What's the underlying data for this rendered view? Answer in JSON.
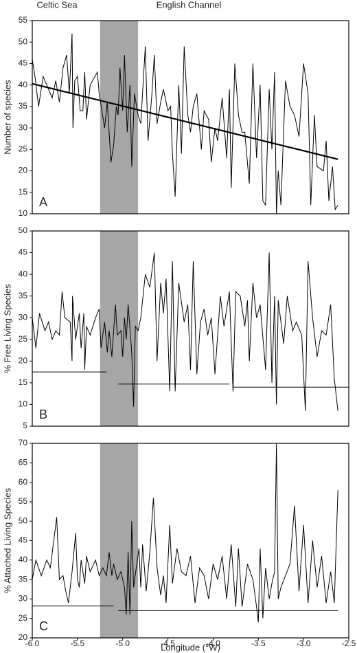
{
  "chart_data": [
    {
      "type": "line",
      "panel_label": "A",
      "ylabel": "Number of species",
      "annotations": [
        "Celtic Sea",
        "English Channel"
      ],
      "xlim": [
        -6,
        -2.5
      ],
      "ylim": [
        10,
        55
      ],
      "yticks": [
        10,
        15,
        20,
        25,
        30,
        35,
        40,
        45,
        50,
        55
      ],
      "shaded_region": [
        -5.25,
        -4.83
      ],
      "shade_color": "#a6a6a6",
      "color": "#000000",
      "x": [
        -6.0,
        -5.97,
        -5.93,
        -5.88,
        -5.82,
        -5.78,
        -5.74,
        -5.7,
        -5.66,
        -5.62,
        -5.59,
        -5.56,
        -5.55,
        -5.53,
        -5.5,
        -5.47,
        -5.44,
        -5.42,
        -5.4,
        -5.38,
        -5.36,
        -5.28,
        -5.26,
        -5.2,
        -5.17,
        -5.13,
        -5.1,
        -5.07,
        -5.05,
        -5.03,
        -5.0,
        -4.98,
        -4.95,
        -4.92,
        -4.9,
        -4.87,
        -4.83,
        -4.8,
        -4.75,
        -4.72,
        -4.68,
        -4.65,
        -4.62,
        -4.58,
        -4.55,
        -4.5,
        -4.47,
        -4.45,
        -4.42,
        -4.38,
        -4.35,
        -4.32,
        -4.28,
        -4.25,
        -4.22,
        -4.18,
        -4.13,
        -4.1,
        -4.05,
        -4.02,
        -3.98,
        -3.95,
        -3.9,
        -3.85,
        -3.82,
        -3.8,
        -3.76,
        -3.72,
        -3.68,
        -3.65,
        -3.6,
        -3.56,
        -3.52,
        -3.48,
        -3.45,
        -3.42,
        -3.38,
        -3.35,
        -3.32,
        -3.3,
        -3.28,
        -3.25,
        -3.2,
        -3.15,
        -3.1,
        -3.05,
        -3.0,
        -2.95,
        -2.92,
        -2.88,
        -2.85,
        -2.78,
        -2.75,
        -2.72,
        -2.68,
        -2.65,
        -2.62
      ],
      "values": [
        46,
        42,
        35,
        42,
        39,
        37,
        41,
        36,
        44,
        47,
        38,
        52,
        30,
        41,
        42,
        34,
        34,
        43,
        32,
        36,
        40,
        43,
        38,
        30,
        36,
        22,
        26,
        35,
        33,
        44,
        34,
        47,
        29,
        40,
        21,
        38,
        33,
        31,
        49,
        27,
        37,
        47,
        31,
        36,
        39,
        34,
        35,
        24,
        14,
        40,
        24,
        49,
        33,
        29,
        35,
        38,
        25,
        34,
        32,
        22,
        30,
        27,
        37,
        23,
        39,
        16,
        45,
        33,
        29,
        29,
        17,
        45,
        23,
        40,
        13,
        12,
        39,
        25,
        43,
        10,
        20,
        12,
        41,
        35,
        33,
        28,
        45,
        38,
        12,
        33,
        21,
        20,
        27,
        13,
        21,
        11,
        12
      ],
      "trend_line": {
        "x": [
          -6.0,
          -2.62
        ],
        "values": [
          40.3,
          22.7
        ]
      }
    },
    {
      "type": "line",
      "panel_label": "B",
      "ylabel": "% Free Living Species",
      "xlim": [
        -6,
        -2.5
      ],
      "ylim": [
        5,
        50
      ],
      "yticks": [
        5,
        10,
        15,
        20,
        25,
        30,
        35,
        40,
        45,
        50
      ],
      "shaded_region": [
        -5.25,
        -4.83
      ],
      "shade_color": "#a6a6a6",
      "color": "#000000",
      "x": [
        -6.0,
        -5.96,
        -5.92,
        -5.86,
        -5.82,
        -5.78,
        -5.74,
        -5.7,
        -5.67,
        -5.64,
        -5.58,
        -5.56,
        -5.555,
        -5.52,
        -5.48,
        -5.46,
        -5.43,
        -5.42,
        -5.4,
        -5.36,
        -5.3,
        -5.26,
        -5.24,
        -5.2,
        -5.17,
        -5.15,
        -5.12,
        -5.08,
        -5.06,
        -5.02,
        -5.0,
        -4.98,
        -4.96,
        -4.94,
        -4.9,
        -4.88,
        -4.86,
        -4.83,
        -4.8,
        -4.75,
        -4.7,
        -4.65,
        -4.62,
        -4.58,
        -4.55,
        -4.52,
        -4.48,
        -4.45,
        -4.42,
        -4.38,
        -4.32,
        -4.28,
        -4.25,
        -4.22,
        -4.18,
        -4.14,
        -4.1,
        -4.06,
        -4.02,
        -3.98,
        -3.92,
        -3.88,
        -3.82,
        -3.78,
        -3.75,
        -3.7,
        -3.65,
        -3.62,
        -3.6,
        -3.56,
        -3.52,
        -3.48,
        -3.42,
        -3.38,
        -3.35,
        -3.32,
        -3.3,
        -3.28,
        -3.22,
        -3.18,
        -3.12,
        -3.08,
        -3.02,
        -2.98,
        -2.95,
        -2.9,
        -2.85,
        -2.8,
        -2.75,
        -2.7,
        -2.66,
        -2.62
      ],
      "values": [
        30,
        23,
        31,
        27,
        29,
        25,
        27,
        26,
        36,
        30,
        29,
        20,
        35,
        25,
        31,
        23,
        31,
        18,
        28,
        26,
        30,
        32,
        23,
        29,
        22,
        27,
        21,
        33,
        26,
        27,
        21,
        30,
        25,
        33,
        22,
        9.5,
        28,
        27,
        30,
        40,
        37,
        45,
        20,
        38,
        31,
        39,
        13,
        43,
        13,
        38,
        29,
        33,
        18,
        43,
        17,
        29,
        32,
        26,
        30,
        17,
        35,
        28,
        36,
        13,
        36,
        35,
        28,
        34,
        20,
        38,
        30,
        33,
        18,
        45,
        15,
        35,
        10,
        34,
        24,
        35,
        27,
        29,
        26,
        8.5,
        43,
        30,
        21,
        27,
        26,
        33,
        16,
        8.5
      ],
      "reference_lines": [
        {
          "x": [
            -6.0,
            -5.18
          ],
          "values": [
            17.5,
            17.5
          ]
        },
        {
          "x": [
            -5.05,
            -3.82
          ],
          "values": [
            14.7,
            14.7
          ]
        },
        {
          "x": [
            -3.78,
            -2.5
          ],
          "values": [
            14,
            14
          ]
        }
      ]
    },
    {
      "type": "line",
      "panel_label": "C",
      "ylabel": "% Attached Living Species",
      "xlabel": "Longitude (°W)",
      "xlim": [
        -6,
        -2.5
      ],
      "xticks": [
        {
          "value": -6,
          "label": "-6.0"
        },
        -5.5,
        {
          "value": -5,
          "label": "-5.0"
        },
        -4.5,
        {
          "value": -4,
          "label": "-4.0"
        },
        -3.5,
        {
          "value": -3,
          "label": "-3.0"
        },
        -2.5
      ],
      "ylim": [
        20,
        70
      ],
      "yticks": [
        20,
        25,
        30,
        35,
        40,
        45,
        50,
        55,
        60,
        65,
        70
      ],
      "shaded_region": [
        -5.25,
        -4.83
      ],
      "shade_color": "#a6a6a6",
      "color": "#000000",
      "x": [
        -6.0,
        -5.96,
        -5.9,
        -5.84,
        -5.8,
        -5.73,
        -5.7,
        -5.66,
        -5.63,
        -5.6,
        -5.56,
        -5.52,
        -5.5,
        -5.48,
        -5.46,
        -5.42,
        -5.4,
        -5.36,
        -5.3,
        -5.26,
        -5.22,
        -5.18,
        -5.15,
        -5.12,
        -5.1,
        -5.06,
        -5.02,
        -4.98,
        -4.96,
        -4.94,
        -4.92,
        -4.9,
        -4.88,
        -4.85,
        -4.82,
        -4.8,
        -4.78,
        -4.74,
        -4.7,
        -4.66,
        -4.62,
        -4.58,
        -4.55,
        -4.52,
        -4.48,
        -4.45,
        -4.4,
        -4.35,
        -4.3,
        -4.25,
        -4.2,
        -4.15,
        -4.1,
        -4.05,
        -4.0,
        -3.95,
        -3.9,
        -3.85,
        -3.8,
        -3.75,
        -3.72,
        -3.68,
        -3.62,
        -3.56,
        -3.52,
        -3.5,
        -3.48,
        -3.45,
        -3.42,
        -3.38,
        -3.35,
        -3.32,
        -3.3,
        -3.28,
        -3.25,
        -3.2,
        -3.15,
        -3.1,
        -3.05,
        -3.0,
        -2.95,
        -2.9,
        -2.85,
        -2.8,
        -2.75,
        -2.7,
        -2.66,
        -2.62
      ],
      "values": [
        35,
        40,
        36,
        40,
        38,
        51,
        35,
        36,
        32,
        29,
        37,
        47,
        35,
        33,
        40,
        34,
        41,
        37,
        40,
        36,
        38,
        36,
        42,
        36,
        39,
        35,
        37,
        33,
        26,
        42,
        26,
        50,
        33,
        38,
        43,
        33,
        44,
        32,
        42,
        56,
        38,
        31,
        36,
        29,
        49,
        34,
        43,
        37,
        36,
        41,
        29,
        38,
        36,
        30,
        39,
        35,
        41,
        30,
        44,
        28,
        43,
        28,
        39,
        35,
        28,
        24,
        43,
        25,
        38,
        30,
        34,
        37,
        70,
        30,
        33,
        36,
        39,
        54,
        32,
        49,
        29,
        45,
        33,
        41,
        29,
        37,
        29,
        58
      ],
      "reference_lines": [
        {
          "x": [
            -6.0,
            -5.1
          ],
          "values": [
            28.2,
            28.2
          ]
        },
        {
          "x": [
            -5.05,
            -2.62
          ],
          "values": [
            27,
            27
          ]
        }
      ]
    }
  ]
}
